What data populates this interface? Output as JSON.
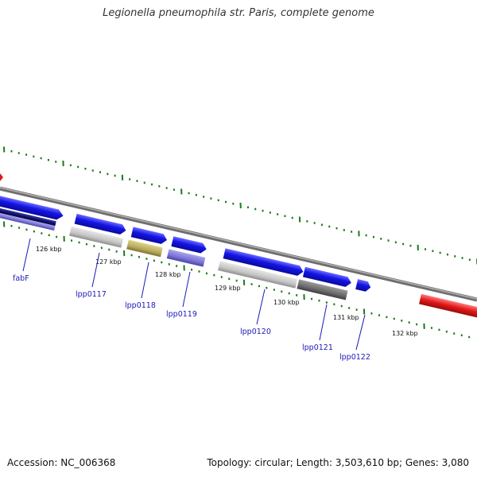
{
  "title": "Legionella pneumophila str. Paris, complete genome",
  "footer": {
    "accession": "Accession: NC_006368",
    "summary": "Topology: circular; Length: 3,503,610 bp; Genes: 3,080"
  },
  "colors": {
    "forward_gene": "#1414e6",
    "backbone": "#8a8a8a",
    "ticks": "#1a7a1a",
    "label": "#1a1ab8",
    "highlight": "#e01818"
  },
  "ruler": {
    "labels": [
      "126 kbp",
      "127 kbp",
      "128 kbp",
      "129 kbp",
      "130 kbp",
      "131 kbp",
      "132 kbp"
    ]
  },
  "genes": [
    {
      "name": "fabF"
    },
    {
      "name": "lpp0117"
    },
    {
      "name": "lpp0118"
    },
    {
      "name": "lpp0119"
    },
    {
      "name": "lpp0120"
    },
    {
      "name": "lpp0121"
    },
    {
      "name": "lpp0122"
    }
  ]
}
